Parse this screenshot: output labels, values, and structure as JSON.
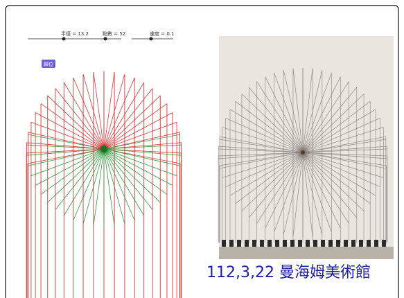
{
  "sliders": [
    {
      "label": "半徑 = 13.2"
    },
    {
      "label": "點數 = 52"
    },
    {
      "label": "速度 = 0.1"
    }
  ],
  "button": {
    "label": "歸位"
  },
  "caption": "112,3,22 曼海姆美術館"
}
